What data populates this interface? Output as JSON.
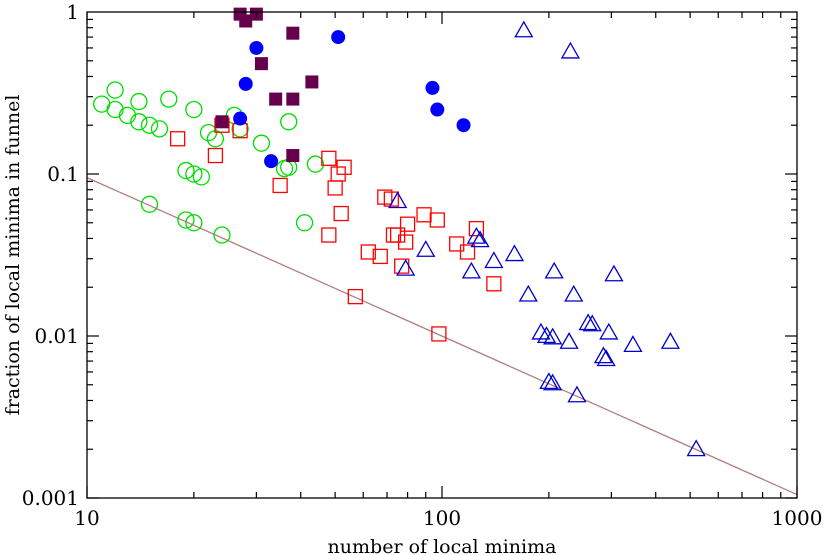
{
  "chart_data": {
    "type": "scatter",
    "title": "",
    "xlabel": "number of local minima",
    "ylabel": "fraction of local minima in funnel",
    "xscale": "log",
    "yscale": "log",
    "xlim": [
      10,
      1000
    ],
    "ylim": [
      0.001,
      1
    ],
    "x_ticks": [
      {
        "value": 10,
        "label": "10"
      },
      {
        "value": 100,
        "label": "100"
      },
      {
        "value": 1000,
        "label": "1000"
      }
    ],
    "y_ticks": [
      {
        "value": 0.001,
        "label": "0.001"
      },
      {
        "value": 0.01,
        "label": "0.01"
      },
      {
        "value": 0.1,
        "label": "0.1"
      },
      {
        "value": 1,
        "label": "1"
      }
    ],
    "grid": false,
    "legend": null,
    "series": [
      {
        "name": "green open circles",
        "marker": "circle-open",
        "color": "#00dd00",
        "points": [
          [
            11,
            0.27
          ],
          [
            12,
            0.33
          ],
          [
            12,
            0.25
          ],
          [
            13,
            0.23
          ],
          [
            14,
            0.28
          ],
          [
            14,
            0.21
          ],
          [
            15,
            0.2
          ],
          [
            16,
            0.19
          ],
          [
            17,
            0.29
          ],
          [
            19,
            0.105
          ],
          [
            20,
            0.25
          ],
          [
            20,
            0.1
          ],
          [
            21,
            0.096
          ],
          [
            22,
            0.18
          ],
          [
            23,
            0.165
          ],
          [
            26,
            0.23
          ],
          [
            27,
            0.19
          ],
          [
            31,
            0.155
          ],
          [
            36,
            0.108
          ],
          [
            37,
            0.11
          ],
          [
            37,
            0.21
          ],
          [
            41,
            0.05
          ],
          [
            44,
            0.115
          ],
          [
            15,
            0.065
          ],
          [
            19,
            0.052
          ],
          [
            20,
            0.05
          ],
          [
            24,
            0.042
          ]
        ]
      },
      {
        "name": "red open squares",
        "marker": "square-open",
        "color": "#ff0000",
        "points": [
          [
            18,
            0.165
          ],
          [
            23,
            0.13
          ],
          [
            24,
            0.2
          ],
          [
            27,
            0.185
          ],
          [
            35,
            0.085
          ],
          [
            48,
            0.125
          ],
          [
            50,
            0.082
          ],
          [
            51,
            0.1
          ],
          [
            52,
            0.057
          ],
          [
            53,
            0.11
          ],
          [
            48,
            0.042
          ],
          [
            62,
            0.033
          ],
          [
            67,
            0.031
          ],
          [
            69,
            0.072
          ],
          [
            72,
            0.07
          ],
          [
            73,
            0.042
          ],
          [
            75,
            0.042
          ],
          [
            77,
            0.027
          ],
          [
            79,
            0.038
          ],
          [
            80,
            0.049
          ],
          [
            89,
            0.056
          ],
          [
            97,
            0.052
          ],
          [
            110,
            0.037
          ],
          [
            118,
            0.033
          ],
          [
            125,
            0.046
          ],
          [
            140,
            0.021
          ],
          [
            57,
            0.0175
          ],
          [
            98,
            0.0103
          ]
        ]
      },
      {
        "name": "blue open triangles",
        "marker": "triangle-open",
        "color": "#0000cc",
        "points": [
          [
            75,
            0.068
          ],
          [
            79,
            0.026
          ],
          [
            90,
            0.034
          ],
          [
            121,
            0.025
          ],
          [
            125,
            0.041
          ],
          [
            128,
            0.039
          ],
          [
            140,
            0.029
          ],
          [
            160,
            0.032
          ],
          [
            175,
            0.018
          ],
          [
            190,
            0.0105
          ],
          [
            197,
            0.01
          ],
          [
            205,
            0.0098
          ],
          [
            207,
            0.025
          ],
          [
            228,
            0.0092
          ],
          [
            235,
            0.018
          ],
          [
            258,
            0.012
          ],
          [
            265,
            0.0118
          ],
          [
            285,
            0.0075
          ],
          [
            290,
            0.0072
          ],
          [
            295,
            0.0105
          ],
          [
            305,
            0.024
          ],
          [
            345,
            0.0088
          ],
          [
            440,
            0.0092
          ],
          [
            200,
            0.0052
          ],
          [
            205,
            0.0051
          ],
          [
            240,
            0.0043
          ],
          [
            520,
            0.002
          ],
          [
            170,
            0.77
          ],
          [
            230,
            0.57
          ]
        ]
      },
      {
        "name": "blue filled circles",
        "marker": "circle-filled",
        "color": "#0000ff",
        "points": [
          [
            27,
            0.22
          ],
          [
            28,
            0.36
          ],
          [
            30,
            0.6
          ],
          [
            33,
            0.12
          ],
          [
            51,
            0.7
          ],
          [
            94,
            0.34
          ],
          [
            97,
            0.25
          ],
          [
            115,
            0.2
          ]
        ]
      },
      {
        "name": "maroon filled squares",
        "marker": "square-filled",
        "color": "#66004d",
        "points": [
          [
            24,
            0.21
          ],
          [
            27,
            0.97
          ],
          [
            28,
            0.88
          ],
          [
            30,
            0.97
          ],
          [
            31,
            0.48
          ],
          [
            34,
            0.29
          ],
          [
            38,
            0.29
          ],
          [
            38,
            0.74
          ],
          [
            38,
            0.13
          ],
          [
            43,
            0.37
          ]
        ]
      }
    ],
    "fit_line": {
      "name": "reference line",
      "color": "#b08080",
      "from": [
        10,
        0.095
      ],
      "to": [
        1000,
        0.00105
      ]
    }
  }
}
